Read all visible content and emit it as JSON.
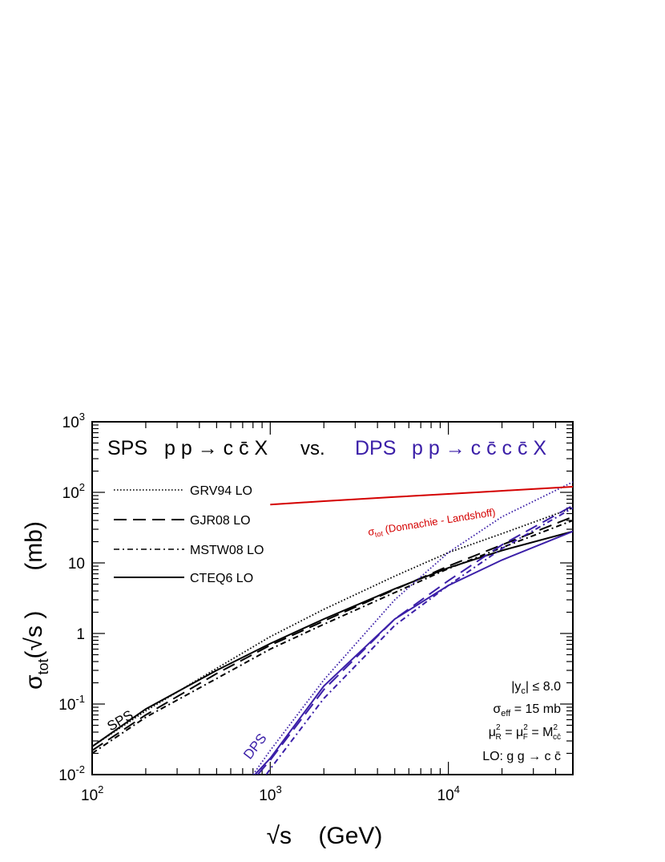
{
  "chart_data": {
    "type": "line",
    "title": {
      "sps_label": "SPS",
      "sps_process": "p p → c c̄ X",
      "vs": "vs.",
      "dps_label": "DPS",
      "dps_process": "p p → c c̄ c c̄ X"
    },
    "xlabel": "√s    (GeV)",
    "ylabel_main": "σ",
    "ylabel_sub": "tot",
    "ylabel_rest": "(√s )      (mb)",
    "xscale": "log",
    "yscale": "log",
    "xlim": [
      100,
      50000
    ],
    "ylim": [
      0.01,
      1000
    ],
    "x_ticks": [
      {
        "value": 100,
        "base": "10",
        "exp": "2"
      },
      {
        "value": 1000,
        "base": "10",
        "exp": "3"
      },
      {
        "value": 10000,
        "base": "10",
        "exp": "4"
      }
    ],
    "y_ticks": [
      {
        "value": 0.01,
        "base": "10",
        "exp": "-2"
      },
      {
        "value": 0.1,
        "base": "10",
        "exp": "-1"
      },
      {
        "value": 1,
        "base": "1",
        "exp": ""
      },
      {
        "value": 10,
        "base": "10",
        "exp": ""
      },
      {
        "value": 100,
        "base": "10",
        "exp": "2"
      },
      {
        "value": 1000,
        "base": "10",
        "exp": "3"
      }
    ],
    "legend_position": "upper-left",
    "legend": [
      {
        "label": "GRV94 LO",
        "style": "dotted"
      },
      {
        "label": "GJR08 LO",
        "style": "dashed"
      },
      {
        "label": "MSTW08 LO",
        "style": "dashdot"
      },
      {
        "label": "CTEQ6 LO",
        "style": "solid"
      }
    ],
    "colors": {
      "sps": "#000000",
      "dps": "#3b1fa8",
      "total": "#d40000"
    },
    "series": [
      {
        "group": "SPS",
        "pdf": "GRV94 LO",
        "style": "dotted",
        "x": [
          100,
          200,
          500,
          1000,
          2000,
          5000,
          10000,
          20000,
          50000
        ],
        "y": [
          0.025,
          0.08,
          0.32,
          0.9,
          2.2,
          6.5,
          14,
          26,
          60
        ]
      },
      {
        "group": "SPS",
        "pdf": "GJR08 LO",
        "style": "dashed",
        "x": [
          100,
          200,
          500,
          1000,
          2000,
          5000,
          10000,
          20000,
          50000
        ],
        "y": [
          0.022,
          0.07,
          0.27,
          0.68,
          1.5,
          4.2,
          9,
          18,
          45
        ]
      },
      {
        "group": "SPS",
        "pdf": "MSTW08 LO",
        "style": "dashdot",
        "x": [
          100,
          200,
          500,
          1000,
          2000,
          5000,
          10000,
          20000,
          50000
        ],
        "y": [
          0.02,
          0.065,
          0.23,
          0.6,
          1.35,
          3.8,
          8.3,
          16.5,
          40
        ]
      },
      {
        "group": "SPS",
        "pdf": "CTEQ6 LO",
        "style": "solid",
        "x": [
          100,
          200,
          500,
          1000,
          2000,
          5000,
          10000,
          20000,
          50000
        ],
        "y": [
          0.025,
          0.085,
          0.3,
          0.72,
          1.6,
          4.3,
          8.5,
          15,
          28
        ]
      },
      {
        "group": "DPS",
        "pdf": "GRV94 LO",
        "style": "dotted",
        "x": [
          800,
          1000,
          2000,
          5000,
          10000,
          20000,
          50000
        ],
        "y": [
          0.01,
          0.022,
          0.22,
          3,
          14,
          45,
          140
        ]
      },
      {
        "group": "DPS",
        "pdf": "GJR08 LO",
        "style": "dashed",
        "x": [
          850,
          1000,
          2000,
          5000,
          10000,
          20000,
          50000
        ],
        "y": [
          0.01,
          0.016,
          0.16,
          1.6,
          5.6,
          18,
          65
        ]
      },
      {
        "group": "DPS",
        "pdf": "MSTW08 LO",
        "style": "dashdot",
        "x": [
          950,
          1000,
          2000,
          5000,
          10000,
          20000,
          50000
        ],
        "y": [
          0.01,
          0.012,
          0.12,
          1.3,
          4.8,
          16,
          60
        ]
      },
      {
        "group": "DPS",
        "pdf": "CTEQ6 LO",
        "style": "solid",
        "x": [
          820,
          1000,
          2000,
          5000,
          10000,
          20000,
          50000
        ],
        "y": [
          0.01,
          0.017,
          0.18,
          1.6,
          4.8,
          11,
          28
        ]
      },
      {
        "group": "total",
        "pdf": "Donnachie - Landshoff",
        "style": "solid",
        "x": [
          1000,
          2000,
          5000,
          10000,
          20000,
          50000
        ],
        "y": [
          67,
          75,
          86,
          95,
          105,
          120
        ]
      }
    ],
    "annotations": {
      "sps_curve_label": "SPS",
      "dps_curve_label": "DPS",
      "total_label_main": "σ",
      "total_label_sub": "tot",
      "total_label_rest": " (Donnachie - Landshoff)",
      "cut_rapidity": {
        "pre": "|y",
        "sub": "c",
        "post": "| ≤ 8.0"
      },
      "sigma_eff": {
        "pre": "σ",
        "sub": "eff",
        "post": " = 15 mb"
      },
      "scales": {
        "mu": "μ",
        "sup": "2",
        "subR": "R",
        "subF": "F",
        "eq": " = ",
        "M": "M",
        "subM": "cc̄"
      },
      "lo_process": "LO:   g g → c c̄"
    }
  }
}
